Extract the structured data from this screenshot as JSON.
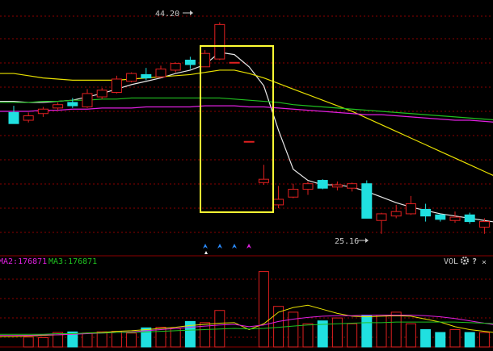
{
  "colors": {
    "background": "#000000",
    "grid": "#8b0000",
    "up": "#e02020",
    "down": "#20e0e0",
    "ma_white": "#e8e8e8",
    "ma_yellow": "#e8e000",
    "ma_green": "#20c020",
    "ma_magenta": "#e020e0",
    "highlight": "#ffff33",
    "label": "#c8c8c8"
  },
  "chart_data": {
    "type": "candlestick",
    "price_axis": {
      "ylim": [
        23.3,
        46.2
      ],
      "grid": true
    },
    "annotations": {
      "high_label": "44.20",
      "low_label": "25.16",
      "high_index": 14,
      "low_index": 25
    },
    "candles": [
      {
        "o": 36.1,
        "h": 36.7,
        "l": 35.1,
        "c": 35.1
      },
      {
        "o": 35.4,
        "h": 36.1,
        "l": 35.2,
        "c": 35.8
      },
      {
        "o": 36.0,
        "h": 36.6,
        "l": 35.7,
        "c": 36.4
      },
      {
        "o": 36.5,
        "h": 37.0,
        "l": 36.3,
        "c": 36.8
      },
      {
        "o": 37.0,
        "h": 37.4,
        "l": 36.5,
        "c": 36.7
      },
      {
        "o": 36.6,
        "h": 38.2,
        "l": 36.5,
        "c": 37.8
      },
      {
        "o": 37.5,
        "h": 38.3,
        "l": 37.3,
        "c": 38.1
      },
      {
        "o": 37.9,
        "h": 39.4,
        "l": 37.8,
        "c": 39.1
      },
      {
        "o": 38.9,
        "h": 39.7,
        "l": 38.8,
        "c": 39.6
      },
      {
        "o": 39.5,
        "h": 40.1,
        "l": 39.0,
        "c": 39.2
      },
      {
        "o": 39.3,
        "h": 40.3,
        "l": 39.2,
        "c": 40.0
      },
      {
        "o": 39.9,
        "h": 40.6,
        "l": 39.7,
        "c": 40.5
      },
      {
        "o": 40.8,
        "h": 41.1,
        "l": 40.0,
        "c": 40.4
      },
      {
        "o": 40.2,
        "h": 41.7,
        "l": 40.2,
        "c": 41.4
      },
      {
        "o": 40.9,
        "h": 44.2,
        "l": 40.8,
        "c": 44.0
      },
      {
        "o": 40.6,
        "h": 40.6,
        "l": 40.6,
        "c": 40.6
      },
      {
        "o": 33.5,
        "h": 33.5,
        "l": 33.5,
        "c": 33.5
      },
      {
        "o": 29.8,
        "h": 31.4,
        "l": 29.6,
        "c": 30.1
      },
      {
        "o": 27.8,
        "h": 29.5,
        "l": 27.5,
        "c": 28.3
      },
      {
        "o": 28.5,
        "h": 29.7,
        "l": 28.4,
        "c": 29.2
      },
      {
        "o": 29.2,
        "h": 29.9,
        "l": 28.7,
        "c": 29.7
      },
      {
        "o": 30.0,
        "h": 30.1,
        "l": 29.2,
        "c": 29.3
      },
      {
        "o": 29.4,
        "h": 29.9,
        "l": 29.1,
        "c": 29.6
      },
      {
        "o": 29.3,
        "h": 29.8,
        "l": 29.0,
        "c": 29.7
      },
      {
        "o": 29.7,
        "h": 30.0,
        "l": 26.6,
        "c": 26.6
      },
      {
        "o": 26.4,
        "h": 27.1,
        "l": 25.2,
        "c": 27.0
      },
      {
        "o": 26.8,
        "h": 27.8,
        "l": 26.6,
        "c": 27.2
      },
      {
        "o": 27.0,
        "h": 28.6,
        "l": 26.9,
        "c": 27.9
      },
      {
        "o": 27.4,
        "h": 27.9,
        "l": 26.3,
        "c": 26.8
      },
      {
        "o": 26.9,
        "h": 27.0,
        "l": 26.3,
        "c": 26.5
      },
      {
        "o": 26.4,
        "h": 27.2,
        "l": 26.2,
        "c": 26.7
      },
      {
        "o": 26.9,
        "h": 27.1,
        "l": 26.1,
        "c": 26.3
      },
      {
        "o": 25.8,
        "h": 26.6,
        "l": 25.2,
        "c": 26.3
      },
      {
        "o": 26.4,
        "h": 26.7,
        "l": 25.8,
        "c": 25.9
      }
    ],
    "ma_lines": [
      {
        "color_key": "ma_white",
        "values": [
          37.1,
          37.0,
          37.0,
          37.1,
          37.2,
          37.5,
          37.8,
          38.2,
          38.6,
          38.9,
          39.2,
          39.6,
          39.9,
          40.4,
          41.5,
          41.3,
          40.2,
          38.5,
          34.5,
          31.0,
          30.0,
          29.6,
          29.6,
          29.4,
          29.0,
          28.5,
          28.0,
          27.6,
          27.3,
          27.0,
          26.8,
          26.6,
          26.4,
          26.2
        ]
      },
      {
        "color_key": "ma_yellow",
        "values": [
          39.6,
          39.4,
          39.2,
          39.1,
          39.0,
          39.0,
          39.0,
          39.0,
          39.1,
          39.2,
          39.3,
          39.4,
          39.5,
          39.7,
          39.9,
          39.9,
          39.6,
          39.2,
          38.7,
          38.2,
          37.7,
          37.2,
          36.7,
          36.2,
          35.6,
          35.0,
          34.4,
          33.8,
          33.2,
          32.6,
          32.0,
          31.4,
          30.8,
          30.2
        ]
      },
      {
        "color_key": "ma_green",
        "values": [
          37.0,
          37.0,
          37.1,
          37.1,
          37.2,
          37.2,
          37.3,
          37.3,
          37.4,
          37.4,
          37.4,
          37.4,
          37.4,
          37.4,
          37.4,
          37.3,
          37.2,
          37.1,
          37.0,
          36.8,
          36.7,
          36.6,
          36.5,
          36.4,
          36.3,
          36.2,
          36.1,
          36.0,
          35.9,
          35.8,
          35.7,
          35.6,
          35.5,
          35.4
        ]
      },
      {
        "color_key": "ma_magenta",
        "values": [
          36.2,
          36.2,
          36.3,
          36.3,
          36.4,
          36.4,
          36.5,
          36.5,
          36.5,
          36.6,
          36.6,
          36.6,
          36.6,
          36.7,
          36.7,
          36.7,
          36.6,
          36.6,
          36.5,
          36.4,
          36.3,
          36.2,
          36.1,
          36.0,
          35.9,
          35.9,
          35.8,
          35.7,
          35.6,
          35.5,
          35.4,
          35.4,
          35.3,
          35.2
        ]
      }
    ],
    "volume": {
      "values": [
        0,
        17,
        16,
        25,
        26,
        24,
        26,
        27,
        24,
        33,
        34,
        32,
        44,
        42,
        63,
        0,
        0,
        130,
        70,
        60,
        40,
        45,
        50,
        40,
        55,
        55,
        60,
        40,
        30,
        25,
        30,
        25,
        25,
        25
      ],
      "vol_lines": [
        {
          "color_key": "ma_yellow",
          "values": [
            18,
            19,
            20,
            21,
            22,
            24,
            25,
            27,
            28,
            30,
            32,
            34,
            37,
            39,
            41,
            42,
            30,
            40,
            60,
            68,
            72,
            65,
            58,
            53,
            52,
            53,
            54,
            53,
            48,
            43,
            35,
            30,
            27,
            24
          ]
        },
        {
          "color_key": "ma_magenta",
          "values": [
            20,
            20,
            21,
            21,
            22,
            23,
            24,
            25,
            26,
            28,
            30,
            32,
            34,
            36,
            38,
            39,
            35,
            38,
            44,
            48,
            51,
            53,
            54,
            54,
            55,
            55,
            55,
            55,
            54,
            52,
            49,
            45,
            41,
            37
          ]
        },
        {
          "color_key": "ma_green",
          "values": [
            22,
            22,
            22,
            23,
            23,
            24,
            24,
            25,
            25,
            26,
            27,
            28,
            29,
            30,
            31,
            32,
            31,
            32,
            34,
            36,
            38,
            39,
            40,
            41,
            42,
            42,
            43,
            43,
            43,
            43,
            43,
            42,
            41,
            40
          ]
        }
      ]
    },
    "markers": {
      "arrows": 4,
      "point": 1
    }
  },
  "volume_legend": {
    "ma2": "MA2:176871",
    "ma3": "MA3:176871",
    "vol": "VOL"
  },
  "toolbar": {
    "settings_icon": "gear-icon",
    "help_label": "?",
    "close_label": "×"
  }
}
